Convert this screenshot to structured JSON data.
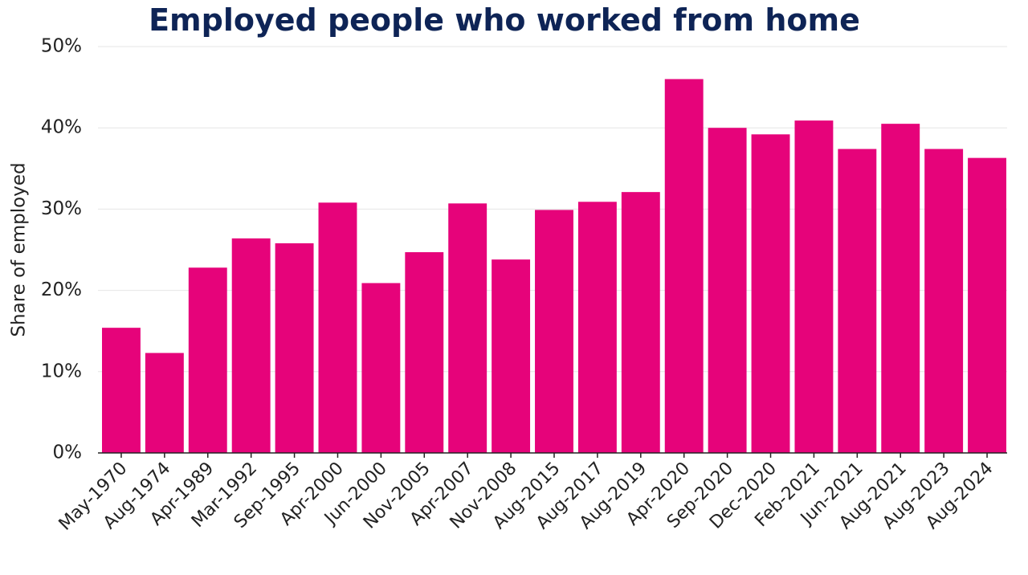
{
  "chart_data": {
    "type": "bar",
    "title": "Employed people who worked from home",
    "xlabel": "",
    "ylabel": "Share of employed",
    "ylim": [
      0,
      50
    ],
    "yticks": [
      "0%",
      "10%",
      "20%",
      "30%",
      "40%",
      "50%"
    ],
    "ytick_values": [
      0,
      10,
      20,
      30,
      40,
      50
    ],
    "grid": true,
    "categories": [
      "May-1970",
      "Aug-1974",
      "Apr-1989",
      "Mar-1992",
      "Sep-1995",
      "Apr-2000",
      "Jun-2000",
      "Nov-2005",
      "Apr-2007",
      "Nov-2008",
      "Aug-2015",
      "Aug-2017",
      "Aug-2019",
      "Apr-2020",
      "Sep-2020",
      "Dec-2020",
      "Feb-2021",
      "Jun-2021",
      "Aug-2021",
      "Aug-2023",
      "Aug-2024"
    ],
    "values": [
      15.4,
      12.3,
      22.8,
      26.4,
      25.8,
      30.8,
      20.9,
      24.7,
      30.7,
      23.8,
      29.9,
      30.9,
      32.1,
      46.0,
      40.0,
      39.2,
      40.9,
      37.4,
      40.5,
      37.4,
      36.3
    ],
    "colors": {
      "bar": "#e6037a",
      "title": "#0e2456",
      "grid": "#e6e6e6",
      "axis": "#222222"
    }
  }
}
